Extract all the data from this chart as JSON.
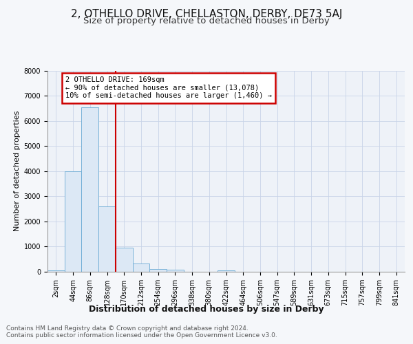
{
  "title_line1": "2, OTHELLO DRIVE, CHELLASTON, DERBY, DE73 5AJ",
  "title_line2": "Size of property relative to detached houses in Derby",
  "xlabel": "Distribution of detached houses by size in Derby",
  "ylabel": "Number of detached properties",
  "footnote": "Contains HM Land Registry data © Crown copyright and database right 2024.\nContains public sector information licensed under the Open Government Licence v3.0.",
  "bin_labels": [
    "2sqm",
    "44sqm",
    "86sqm",
    "128sqm",
    "170sqm",
    "212sqm",
    "254sqm",
    "296sqm",
    "338sqm",
    "380sqm",
    "422sqm",
    "464sqm",
    "506sqm",
    "547sqm",
    "589sqm",
    "631sqm",
    "673sqm",
    "715sqm",
    "757sqm",
    "799sqm",
    "841sqm"
  ],
  "bar_heights": [
    60,
    4000,
    6550,
    2600,
    950,
    330,
    110,
    95,
    0,
    0,
    55,
    0,
    0,
    0,
    0,
    0,
    0,
    0,
    0,
    0,
    0
  ],
  "bar_color": "#dce8f5",
  "bar_edge_color": "#6aaad4",
  "vline_x": 3.5,
  "vline_color": "#cc0000",
  "annotation_line1": "2 OTHELLO DRIVE: 169sqm",
  "annotation_line2": "← 90% of detached houses are smaller (13,078)",
  "annotation_line3": "10% of semi-detached houses are larger (1,460) →",
  "annotation_box_color": "#cc0000",
  "annotation_bg": "#ffffff",
  "ylim": [
    0,
    8000
  ],
  "yticks": [
    0,
    1000,
    2000,
    3000,
    4000,
    5000,
    6000,
    7000,
    8000
  ],
  "bg_color": "#eef2f8",
  "grid_color": "#c8d4e8",
  "fig_bg": "#f5f7fa",
  "title1_fontsize": 11,
  "title2_fontsize": 9.5,
  "xlabel_fontsize": 9,
  "ylabel_fontsize": 8,
  "tick_fontsize": 7,
  "footnote_fontsize": 6.5,
  "annot_fontsize": 7.5
}
